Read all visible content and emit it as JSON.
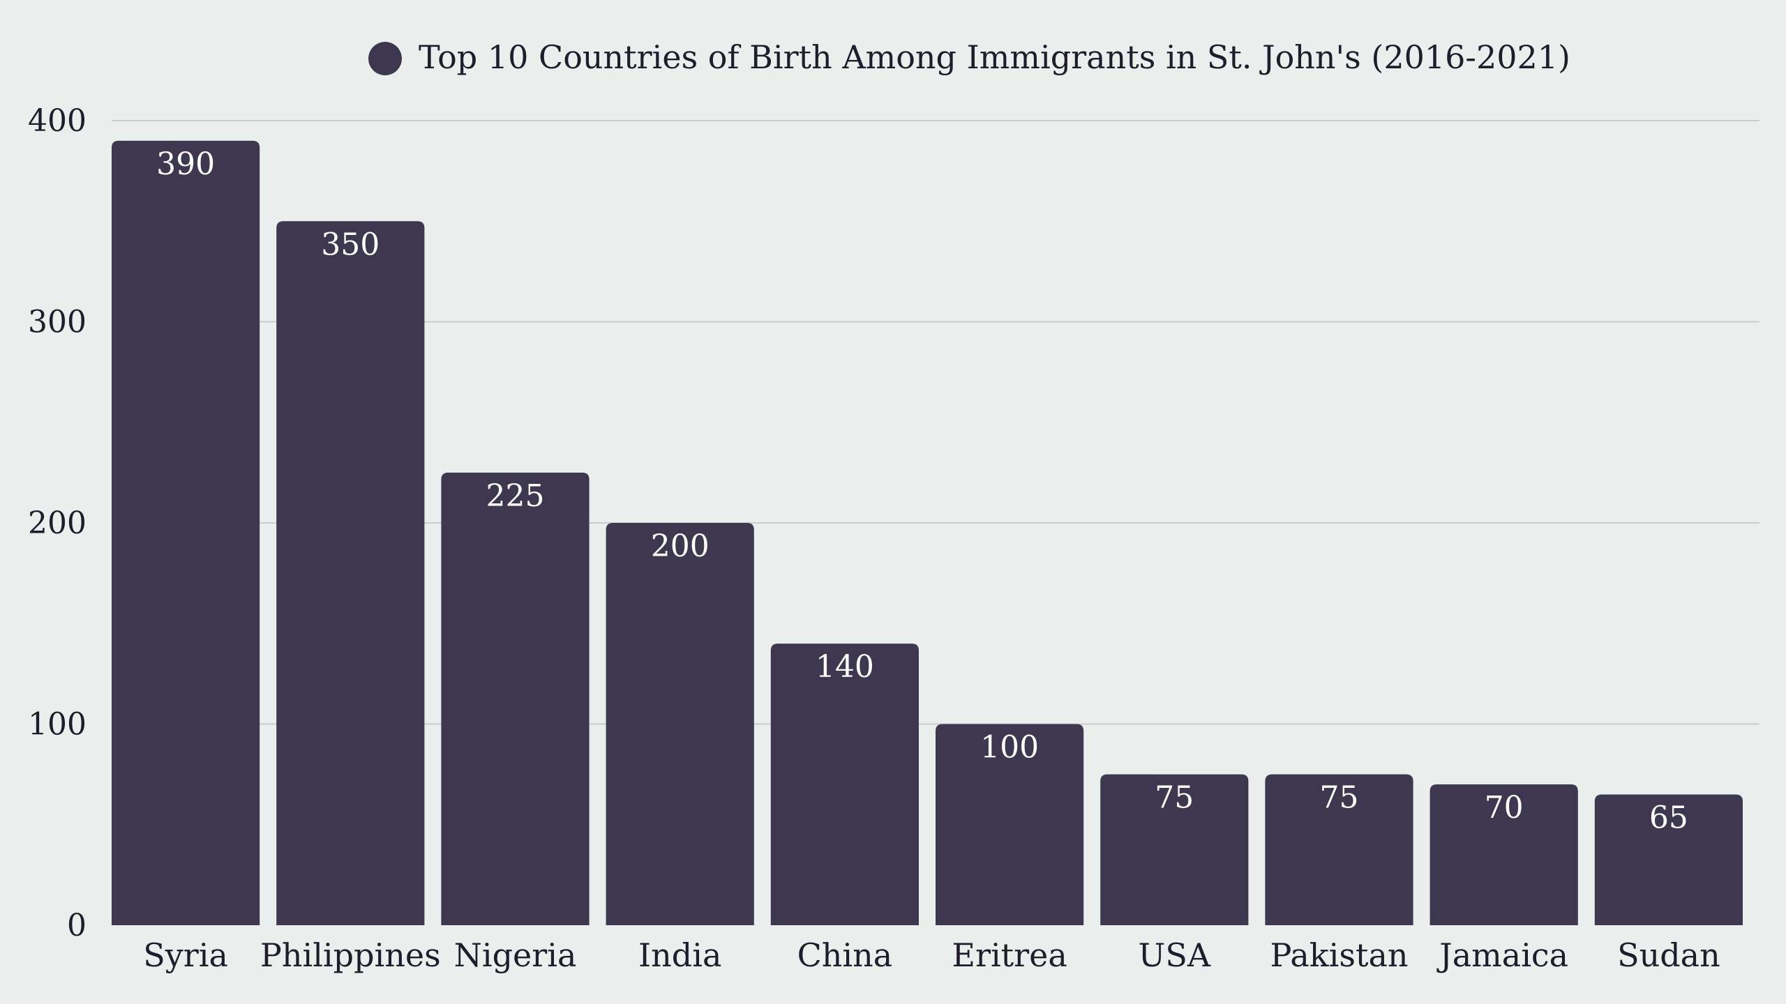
{
  "colors": {
    "background": "#EAEEED",
    "bar": "#3D3850",
    "grid": "#C8CCCB",
    "text": "#1F1C2C",
    "value_label": "#FFFFFF"
  },
  "chart_data": {
    "type": "bar",
    "title": "",
    "xlabel": "",
    "ylabel": "",
    "legend_position": "top-center",
    "grid": true,
    "ylim": [
      0,
      400
    ],
    "yticks": [
      0,
      100,
      200,
      300,
      400
    ],
    "categories": [
      "Syria",
      "Philippines",
      "Nigeria",
      "India",
      "China",
      "Eritrea",
      "USA",
      "Pakistan",
      "Jamaica",
      "Sudan"
    ],
    "series": [
      {
        "name": "Top 10 Countries of Birth Among Immigrants in St. John's (2016-2021)",
        "values": [
          390,
          350,
          225,
          200,
          140,
          100,
          75,
          75,
          70,
          65
        ]
      }
    ]
  }
}
